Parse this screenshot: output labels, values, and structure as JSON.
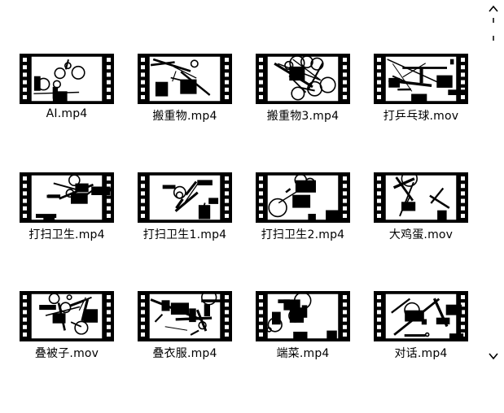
{
  "files": [
    {
      "name": "AI.mp4",
      "pattern": 0
    },
    {
      "name": "搬重物.mp4",
      "pattern": 1
    },
    {
      "name": "搬重物3.mp4",
      "pattern": 2
    },
    {
      "name": "打乒乓球.mov",
      "pattern": 3
    },
    {
      "name": "打扫卫生.mp4",
      "pattern": 4
    },
    {
      "name": "打扫卫生1.mp4",
      "pattern": 5
    },
    {
      "name": "打扫卫生2.mp4",
      "pattern": 6
    },
    {
      "name": "大鸡蛋.mov",
      "pattern": 7
    },
    {
      "name": "叠被子.mov",
      "pattern": 8
    },
    {
      "name": "叠衣服.mp4",
      "pattern": 9
    },
    {
      "name": "端菜.mp4",
      "pattern": 10
    },
    {
      "name": "对话.mp4",
      "pattern": 11
    }
  ],
  "scrollbar": {
    "up_icon": "chevron-up-icon",
    "down_icon": "chevron-down-icon"
  },
  "colors": {
    "background": "#ffffff",
    "film": "#000000",
    "text": "#000000"
  }
}
